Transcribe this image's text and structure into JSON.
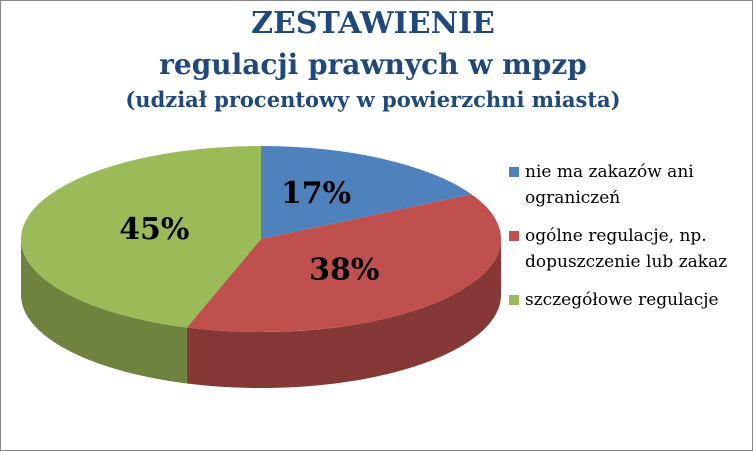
{
  "chart_data": {
    "type": "pie",
    "title": [
      "ZESTAWIENIE",
      "regulacji prawnych w mpzp"
    ],
    "subtitle": "(udział procentowy w powierzchni miasta)",
    "categories": [
      "nie ma zakazów ani ograniczeń",
      "ogólne regulacje, np. dopuszczenie lub zakaz",
      "szczegółowe regulacje"
    ],
    "values": [
      17,
      38,
      45
    ],
    "value_labels": [
      "17%",
      "38%",
      "45%"
    ],
    "colors": [
      "#4f81bd",
      "#c0504d",
      "#9bbb59"
    ],
    "legend": "right"
  }
}
